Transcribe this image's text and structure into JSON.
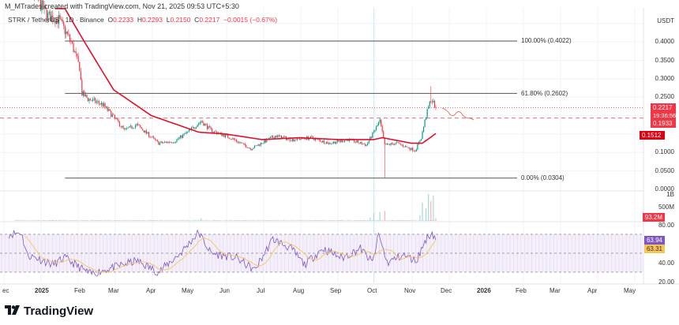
{
  "header": {
    "credit": "M_MTrades created with TradingView.com, Nov 21, 2025 09:53 UTC+5:30",
    "symbol": "STRK / TetherUS · 1D · Binance",
    "ohlc": {
      "o_label": "O",
      "o": "0.2233",
      "h_label": "H",
      "h": "0.2293",
      "l_label": "L",
      "l": "0.2150",
      "c_label": "C",
      "c": "0.2217",
      "change": "−0.0015 (−0.67%)"
    }
  },
  "price_axis": {
    "unit": "USDT",
    "ticks": [
      "0.4000",
      "0.3500",
      "0.3000",
      "0.2500",
      "0.1000",
      "0.0500",
      "0.0000"
    ],
    "last_price": "0.2217",
    "countdown": "19:36:56",
    "level_label": "0.1933",
    "ma_label": "0.1512"
  },
  "volume_axis": {
    "ticks": [
      "1B",
      "500M"
    ],
    "last_volume": "93.2M"
  },
  "rsi_axis": {
    "ticks": [
      "80.00",
      "40.00",
      "20.00"
    ],
    "rsi_value": "63.94",
    "rsi_ma_value": "63.31"
  },
  "fib": {
    "level_100": "100.00% (0.4022)",
    "level_618": "61.80% (0.2602)",
    "level_0": "0.00% (0.0304)"
  },
  "time_axis": [
    "ec",
    "2025",
    "Feb",
    "Mar",
    "Apr",
    "May",
    "Jun",
    "Jul",
    "Aug",
    "Sep",
    "Oct",
    "Nov",
    "Dec",
    "2026",
    "Feb",
    "Mar",
    "Apr",
    "May"
  ],
  "logo": "TradingView",
  "colors": {
    "up": "#089981",
    "down": "#f23645",
    "ma": "#e0102a",
    "rsi": "#7e57c2",
    "rsi_ma": "#f7c55a",
    "fib": "#555555"
  },
  "chart_data": {
    "type": "candlestick",
    "title": "STRK / TetherUS · 1D · Binance",
    "ylabel": "USDT",
    "ylim": [
      0,
      0.51
    ],
    "xlim": [
      "2024-12-01",
      "2026-05-31"
    ],
    "grid": true,
    "close_keypoints": [
      [
        "2024-12-10",
        0.62
      ],
      [
        "2024-12-17",
        0.58
      ],
      [
        "2024-12-25",
        0.53
      ],
      [
        "2025-01-06",
        0.47
      ],
      [
        "2025-01-15",
        0.46
      ],
      [
        "2025-01-25",
        0.4
      ],
      [
        "2025-02-01",
        0.33
      ],
      [
        "2025-02-03",
        0.26
      ],
      [
        "2025-02-08",
        0.245
      ],
      [
        "2025-02-20",
        0.23
      ],
      [
        "2025-02-28",
        0.2
      ],
      [
        "2025-03-10",
        0.16
      ],
      [
        "2025-03-20",
        0.175
      ],
      [
        "2025-04-07",
        0.125
      ],
      [
        "2025-04-20",
        0.13
      ],
      [
        "2025-05-01",
        0.155
      ],
      [
        "2025-05-12",
        0.185
      ],
      [
        "2025-05-20",
        0.16
      ],
      [
        "2025-06-05",
        0.14
      ],
      [
        "2025-06-22",
        0.11
      ],
      [
        "2025-07-12",
        0.145
      ],
      [
        "2025-07-25",
        0.135
      ],
      [
        "2025-08-10",
        0.14
      ],
      [
        "2025-08-25",
        0.125
      ],
      [
        "2025-09-10",
        0.135
      ],
      [
        "2025-09-25",
        0.12
      ],
      [
        "2025-10-06",
        0.185
      ],
      [
        "2025-10-10",
        0.12
      ],
      [
        "2025-10-20",
        0.125
      ],
      [
        "2025-11-04",
        0.105
      ],
      [
        "2025-11-09",
        0.14
      ],
      [
        "2025-11-13",
        0.2
      ],
      [
        "2025-11-17",
        0.245
      ],
      [
        "2025-11-21",
        0.2217
      ]
    ],
    "notable_wicks": [
      [
        "2025-10-10",
        0.0304
      ],
      [
        "2025-11-17",
        0.28
      ]
    ],
    "moving_average": [
      [
        "2025-01-20",
        0.49
      ],
      [
        "2025-02-05",
        0.4
      ],
      [
        "2025-03-01",
        0.27
      ],
      [
        "2025-04-01",
        0.2
      ],
      [
        "2025-05-10",
        0.155
      ],
      [
        "2025-06-01",
        0.15
      ],
      [
        "2025-07-01",
        0.135
      ],
      [
        "2025-08-01",
        0.14
      ],
      [
        "2025-09-01",
        0.135
      ],
      [
        "2025-10-01",
        0.135
      ],
      [
        "2025-10-08",
        0.14
      ],
      [
        "2025-11-01",
        0.125
      ],
      [
        "2025-11-10",
        0.125
      ],
      [
        "2025-11-21",
        0.1512
      ]
    ],
    "horizontal_level": 0.1933,
    "fib_levels": [
      {
        "pct": 100,
        "price": 0.4022
      },
      {
        "pct": 61.8,
        "price": 0.2602
      },
      {
        "pct": 0,
        "price": 0.0304
      }
    ],
    "volume_millions": [
      [
        "2025-01-10",
        40
      ],
      [
        "2025-05-12",
        90
      ],
      [
        "2025-09-28",
        110
      ],
      [
        "2025-10-01",
        280
      ],
      [
        "2025-10-06",
        320
      ],
      [
        "2025-10-10",
        350
      ],
      [
        "2025-11-08",
        200
      ],
      [
        "2025-11-10",
        650
      ],
      [
        "2025-11-13",
        450
      ],
      [
        "2025-11-15",
        950
      ],
      [
        "2025-11-17",
        700
      ],
      [
        "2025-11-19",
        900
      ],
      [
        "2025-11-21",
        93.2
      ]
    ],
    "rsi": {
      "bands": [
        70,
        50,
        30
      ],
      "ylim": [
        20,
        80
      ],
      "keypoints": [
        [
          "2024-12-05",
          70
        ],
        [
          "2024-12-15",
          72
        ],
        [
          "2024-12-20",
          48
        ],
        [
          "2024-12-28",
          45
        ],
        [
          "2025-01-10",
          38
        ],
        [
          "2025-01-20",
          45
        ],
        [
          "2025-02-01",
          35
        ],
        [
          "2025-02-10",
          28
        ],
        [
          "2025-03-01",
          35
        ],
        [
          "2025-03-20",
          42
        ],
        [
          "2025-04-07",
          30
        ],
        [
          "2025-04-25",
          50
        ],
        [
          "2025-05-10",
          72
        ],
        [
          "2025-05-20",
          50
        ],
        [
          "2025-06-10",
          45
        ],
        [
          "2025-06-25",
          32
        ],
        [
          "2025-07-10",
          65
        ],
        [
          "2025-07-25",
          55
        ],
        [
          "2025-08-05",
          38
        ],
        [
          "2025-08-20",
          55
        ],
        [
          "2025-09-05",
          45
        ],
        [
          "2025-09-20",
          55
        ],
        [
          "2025-09-30",
          40
        ],
        [
          "2025-10-05",
          70
        ],
        [
          "2025-10-12",
          40
        ],
        [
          "2025-10-25",
          48
        ],
        [
          "2025-11-05",
          42
        ],
        [
          "2025-11-13",
          65
        ],
        [
          "2025-11-18",
          72
        ],
        [
          "2025-11-21",
          63.94
        ]
      ]
    }
  }
}
